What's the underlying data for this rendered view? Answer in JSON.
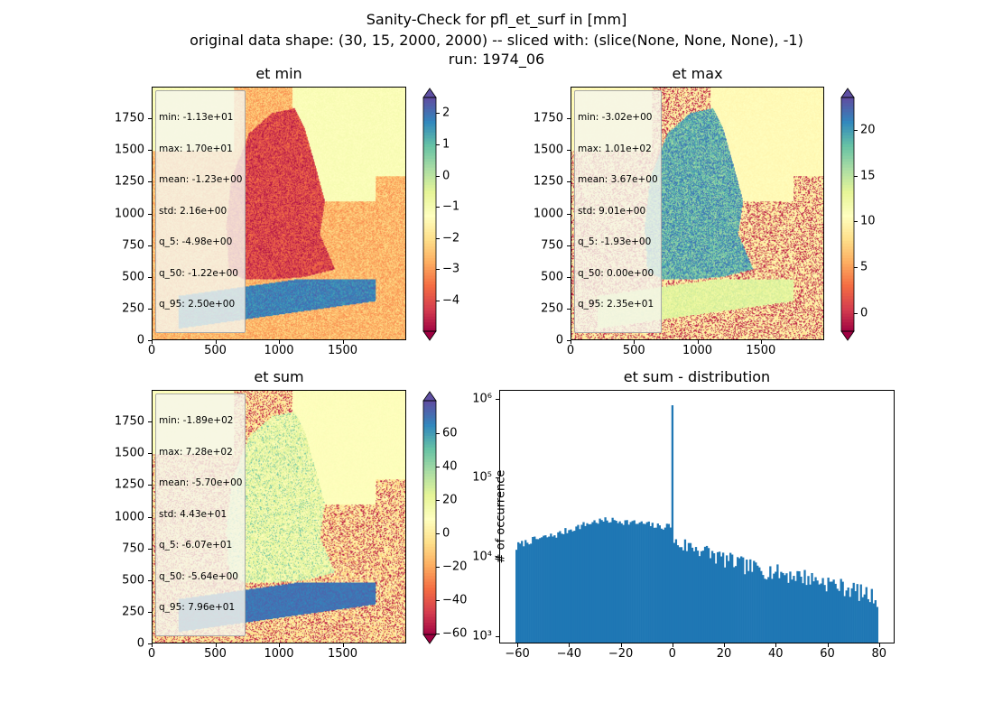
{
  "suptitle": {
    "line1": "Sanity-Check for pfl_et_surf in [mm]",
    "line2": "original data shape: (30, 15, 2000, 2000) -- sliced with: (slice(None, None, None), -1)",
    "line3": "run: 1974_06"
  },
  "colors": {
    "hist_bar": "#1f77b4",
    "colormap": "Spectral",
    "background_pale": "#fbf9b6"
  },
  "panels": {
    "min": {
      "title": "et min",
      "stats": [
        "min: -1.13e+01",
        "max: 1.70e+01",
        "mean: -1.23e+00",
        "std: 2.16e+00",
        "q_5: -4.98e+00",
        "q_50: -1.22e+00",
        "q_95: 2.50e+00"
      ],
      "xticks": [
        "0",
        "500",
        "1000",
        "1500"
      ],
      "yticks": [
        "0",
        "250",
        "500",
        "750",
        "1000",
        "1250",
        "1500",
        "1750"
      ],
      "cbar_ticks": [
        "2",
        "1",
        "0",
        "−1",
        "−2",
        "−3",
        "−4"
      ],
      "cbar_range": [
        -4.98,
        2.5
      ]
    },
    "max": {
      "title": "et max",
      "stats": [
        "min: -3.02e+00",
        "max: 1.01e+02",
        "mean: 3.67e+00",
        "std: 9.01e+00",
        "q_5: -1.93e+00",
        "q_50: 0.00e+00",
        "q_95: 2.35e+01"
      ],
      "xticks": [
        "0",
        "500",
        "1000",
        "1500"
      ],
      "yticks": [
        "0",
        "250",
        "500",
        "750",
        "1000",
        "1250",
        "1500",
        "1750"
      ],
      "cbar_ticks": [
        "20",
        "15",
        "10",
        "5",
        "0"
      ],
      "cbar_range": [
        -1.93,
        23.5
      ]
    },
    "sum": {
      "title": "et sum",
      "stats": [
        "min: -1.89e+02",
        "max: 7.28e+02",
        "mean: -5.70e+00",
        "std: 4.43e+01",
        "q_5: -6.07e+01",
        "q_50: -5.64e+00",
        "q_95: 7.96e+01"
      ],
      "xticks": [
        "0",
        "500",
        "1000",
        "1500"
      ],
      "yticks": [
        "0",
        "250",
        "500",
        "750",
        "1000",
        "1250",
        "1500",
        "1750"
      ],
      "cbar_ticks": [
        "60",
        "40",
        "20",
        "0",
        "−20",
        "−40",
        "−60"
      ],
      "cbar_range": [
        -60.7,
        79.6
      ]
    }
  },
  "chart_data": [
    {
      "type": "heatmap",
      "title": "et min",
      "xlim": [
        0,
        2000
      ],
      "ylim": [
        0,
        2000
      ],
      "colorbar_range": [
        -4.98,
        2.5
      ],
      "colormap": "Spectral"
    },
    {
      "type": "heatmap",
      "title": "et max",
      "xlim": [
        0,
        2000
      ],
      "ylim": [
        0,
        2000
      ],
      "colorbar_range": [
        -1.93,
        23.5
      ],
      "colormap": "Spectral"
    },
    {
      "type": "heatmap",
      "title": "et sum",
      "xlim": [
        0,
        2000
      ],
      "ylim": [
        0,
        2000
      ],
      "colorbar_range": [
        -60.7,
        79.6
      ],
      "colormap": "Spectral"
    },
    {
      "type": "bar",
      "title": "et sum - distribution",
      "xlabel": "",
      "ylabel": "# of occurrence",
      "yscale": "log",
      "xlim": [
        -67,
        86
      ],
      "ylim": [
        800,
        1300000
      ],
      "xticks": [
        "−60",
        "−40",
        "−20",
        "0",
        "20",
        "40",
        "60",
        "80"
      ],
      "yticks": [
        "10³",
        "10⁴",
        "10⁵",
        "10⁶"
      ],
      "bins_start": -60.7,
      "bins_end": 79.6,
      "bin_count": 200,
      "profile_x": [
        -60.7,
        -60,
        -55,
        -50,
        -45,
        -40,
        -35,
        -30,
        -25,
        -20,
        -15,
        -10,
        -5,
        -0.5,
        0,
        0.5,
        5,
        10,
        15,
        20,
        25,
        30,
        35,
        40,
        45,
        50,
        55,
        60,
        65,
        70,
        75,
        79.6
      ],
      "profile_y": [
        12000,
        14000,
        16000,
        17500,
        19000,
        22000,
        25000,
        28000,
        29000,
        28500,
        27000,
        26000,
        24000,
        25000,
        830000,
        15000,
        14000,
        13000,
        11000,
        9500,
        8500,
        7500,
        7000,
        6500,
        6000,
        5800,
        5200,
        4800,
        4300,
        3900,
        3400,
        3000
      ]
    }
  ]
}
